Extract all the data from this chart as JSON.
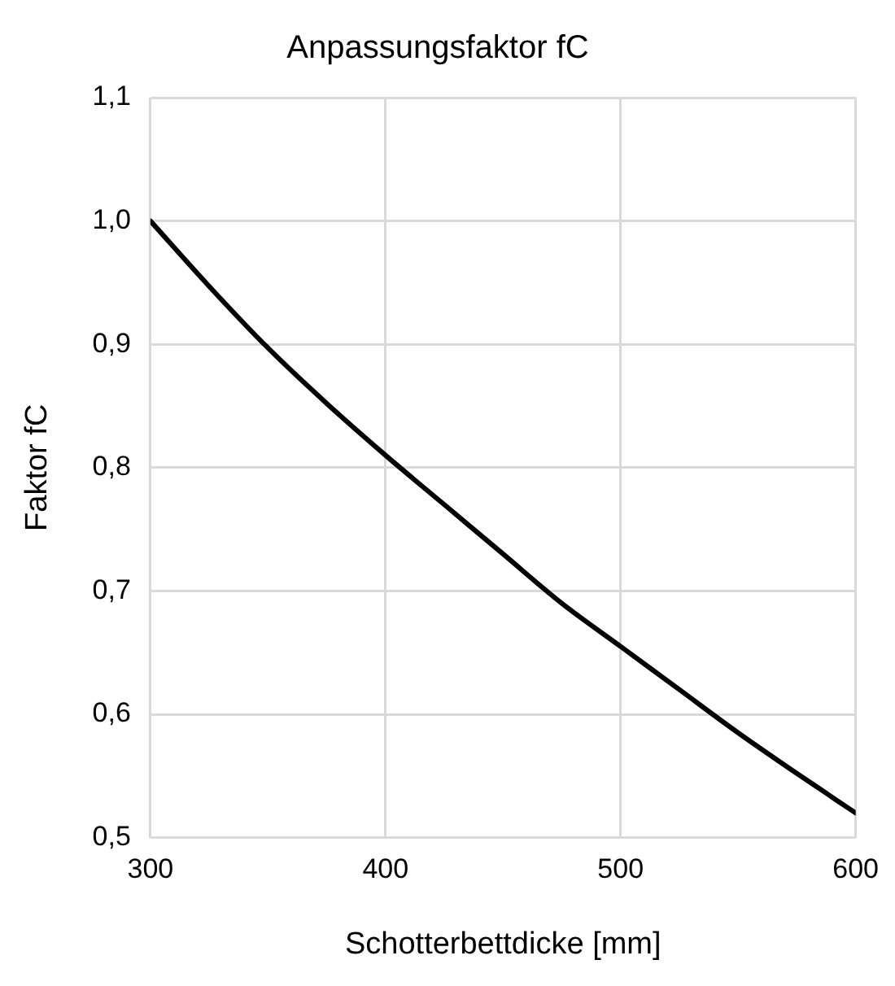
{
  "chart_data": {
    "type": "line",
    "title": "Anpassungsfaktor fC",
    "xlabel": "Schotterbettdicke [mm]",
    "ylabel": "Faktor fC",
    "x": [
      300,
      325,
      350,
      375,
      400,
      425,
      450,
      475,
      500,
      525,
      550,
      575,
      600
    ],
    "series": [
      {
        "color": "#000000",
        "values": [
          1.0,
          0.947,
          0.897,
          0.852,
          0.81,
          0.77,
          0.73,
          0.69,
          0.655,
          0.62,
          0.585,
          0.552,
          0.52
        ]
      }
    ],
    "xlim": [
      300,
      600
    ],
    "xticks": [
      300,
      400,
      500,
      600
    ],
    "ylim": [
      0.5,
      1.1
    ],
    "yticks": [
      {
        "value": 0.5,
        "label": "0,5"
      },
      {
        "value": 0.6,
        "label": "0,6"
      },
      {
        "value": 0.7,
        "label": "0,7"
      },
      {
        "value": 0.8,
        "label": "0,8"
      },
      {
        "value": 0.9,
        "label": "0,9"
      },
      {
        "value": 1.0,
        "label": "1,0"
      },
      {
        "value": 1.1,
        "label": "1,1"
      }
    ],
    "grid": true,
    "legend": false,
    "marker": "none",
    "line_style": "solid"
  }
}
